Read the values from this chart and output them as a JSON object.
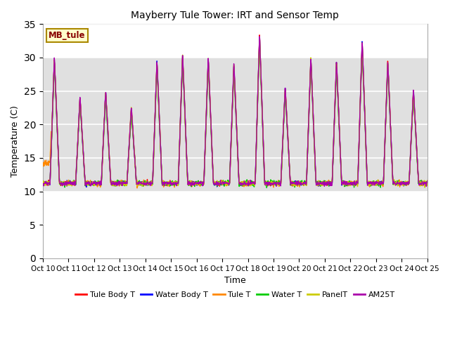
{
  "title": "Mayberry Tule Tower: IRT and Sensor Temp",
  "xlabel": "Time",
  "ylabel": "Temperature (C)",
  "legend_label": "MB_tule",
  "series_names": [
    "Tule Body T",
    "Water Body T",
    "Tule T",
    "Water T",
    "PanelT",
    "AM25T"
  ],
  "series_colors": [
    "#ff0000",
    "#0000ff",
    "#ff8800",
    "#00cc00",
    "#cccc00",
    "#aa00aa"
  ],
  "ylim": [
    0,
    35
  ],
  "yticks": [
    0,
    5,
    10,
    15,
    20,
    25,
    30,
    35
  ],
  "xtick_labels": [
    "Oct 10",
    "Oct 11",
    "Oct 12",
    "Oct 13",
    "Oct 14",
    "Oct 15",
    "Oct 16",
    "Oct 17",
    "Oct 18",
    "Oct 19",
    "Oct 20",
    "Oct 21",
    "Oct 22",
    "Oct 23",
    "Oct 24",
    "Oct 25"
  ],
  "bg_color": "#ffffff",
  "plot_bg_color": "#ffffff",
  "gray_band_color": "#e0e0e0",
  "grid_color": "#ffffff",
  "figsize": [
    6.4,
    4.8
  ],
  "dpi": 100
}
